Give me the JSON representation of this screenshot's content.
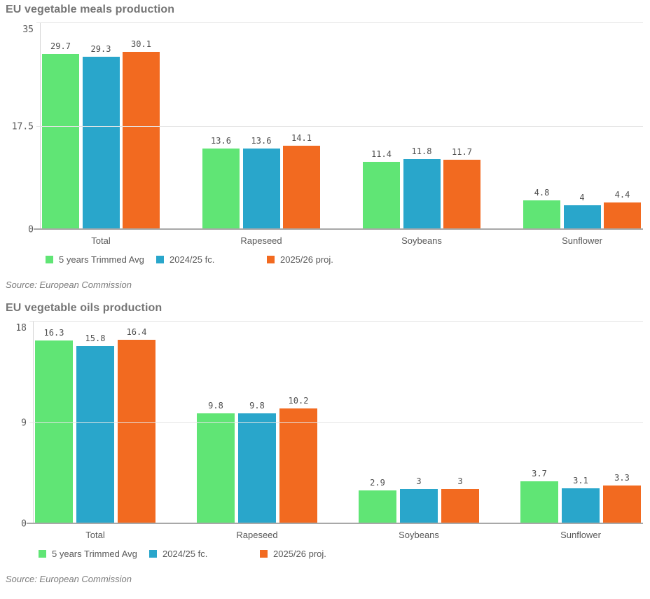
{
  "charts": [
    {
      "title": "EU vegetable meals production",
      "source": "Source: European Commission",
      "chart_data": {
        "type": "bar",
        "title": "EU vegetable meals production",
        "xlabel": "",
        "ylabel": "",
        "categories": [
          "Total",
          "Rapeseed",
          "Soybeans",
          "Sunflower"
        ],
        "series": [
          {
            "name": "5 years Trimmed Avg",
            "color": "#60e575",
            "values": [
              29.7,
              13.6,
              11.4,
              4.8
            ]
          },
          {
            "name": "2024/25 fc.",
            "color": "#29a6cb",
            "values": [
              29.3,
              13.6,
              11.8,
              4
            ]
          },
          {
            "name": "2025/26 proj.",
            "color": "#f26a20",
            "values": [
              30.1,
              14.1,
              11.7,
              4.4
            ]
          }
        ],
        "ylim": [
          0,
          35
        ],
        "y_ticks": [
          0,
          17.5,
          35
        ],
        "grid": true,
        "legend_position": "bottom"
      }
    },
    {
      "title": "EU vegetable oils production",
      "source": "Source: European Commission",
      "chart_data": {
        "type": "bar",
        "title": "EU vegetable oils production",
        "xlabel": "",
        "ylabel": "",
        "categories": [
          "Total",
          "Rapeseed",
          "Soybeans",
          "Sunflower"
        ],
        "series": [
          {
            "name": "5 years Trimmed Avg",
            "color": "#60e575",
            "values": [
              16.3,
              9.8,
              2.9,
              3.7
            ]
          },
          {
            "name": "2024/25 fc.",
            "color": "#29a6cb",
            "values": [
              15.8,
              9.8,
              3,
              3.1
            ]
          },
          {
            "name": "2025/26 proj.",
            "color": "#f26a20",
            "values": [
              16.4,
              10.2,
              3,
              3.3
            ]
          }
        ],
        "ylim": [
          0,
          18
        ],
        "y_ticks": [
          0,
          9,
          18
        ],
        "grid": true,
        "legend_position": "bottom"
      }
    }
  ]
}
